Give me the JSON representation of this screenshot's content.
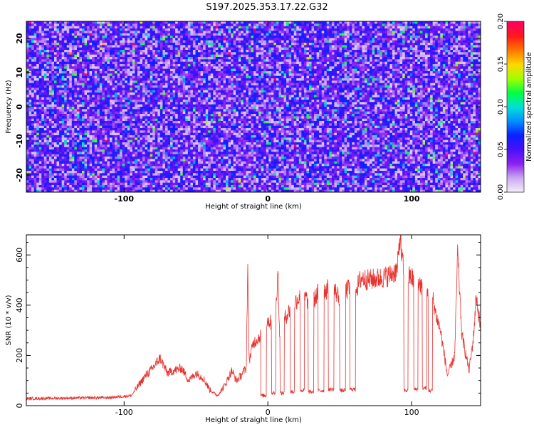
{
  "title": "S197.2025.353.17.22.G32",
  "colors": {
    "snr_line": "#e8322f",
    "background": "#ffffff",
    "axes": "#000000",
    "colormap": [
      "#f4ecfa",
      "#c9a6f0",
      "#8a20f0",
      "#4a10f8",
      "#0a20ff",
      "#0090ff",
      "#00e0d8",
      "#00ff40",
      "#a0ff00",
      "#ffd800",
      "#ff7a00",
      "#ff1a1a",
      "#ff0060"
    ]
  },
  "chart_data": [
    {
      "type": "heatmap",
      "title": "S197.2025.353.17.22.G32",
      "xlabel": "Height of straight line (km)",
      "ylabel": "Frequency (Hz)",
      "xlim": [
        -168,
        148
      ],
      "ylim": [
        -25,
        25
      ],
      "xticks": [
        -100,
        0,
        100
      ],
      "yticks": [
        -20,
        -10,
        0,
        10,
        20
      ],
      "colorbar": {
        "label": "Normalized spectral amplitude",
        "range": [
          0,
          0.2
        ],
        "ticks": [
          "0.00",
          "0.05",
          "0.10",
          "0.15",
          "0.20"
        ]
      },
      "texture": {
        "grid_cols": 180,
        "grid_rows": 72,
        "base_level": 0.035,
        "noise_sigma": 0.03,
        "max_speckle": 0.18
      }
    },
    {
      "type": "line",
      "xlabel": "Height of straight line (km)",
      "ylabel": "SNR (10 * v/v)",
      "xlim": [
        -168,
        148
      ],
      "ylim": [
        0,
        680
      ],
      "xticks": [
        -100,
        0,
        100
      ],
      "yticks": [
        0,
        200,
        400,
        600
      ],
      "series": [
        {
          "name": "SNR",
          "x": [
            -168,
            -140,
            -110,
            -95,
            -90,
            -85,
            -80,
            -75,
            -70,
            -65,
            -60,
            -55,
            -50,
            -45,
            -40,
            -35,
            -30,
            -25,
            -22,
            -20,
            -15,
            -14,
            -13,
            -10,
            -5,
            0,
            5,
            7,
            8,
            10,
            15,
            20,
            25,
            30,
            35,
            40,
            45,
            50,
            55,
            60,
            62,
            65,
            70,
            75,
            80,
            85,
            90,
            92,
            93,
            95,
            100,
            105,
            110,
            115,
            117,
            120,
            125,
            130,
            132,
            135,
            140,
            143,
            145,
            148
          ],
          "values": [
            28,
            30,
            32,
            40,
            80,
            120,
            150,
            190,
            130,
            140,
            150,
            100,
            130,
            110,
            60,
            40,
            80,
            140,
            100,
            110,
            150,
            560,
            180,
            250,
            280,
            340,
            320,
            545,
            300,
            330,
            380,
            420,
            440,
            400,
            450,
            460,
            470,
            430,
            460,
            480,
            470,
            510,
            500,
            505,
            510,
            520,
            540,
            680,
            600,
            520,
            510,
            490,
            450,
            420,
            360,
            300,
            120,
            200,
            610,
            280,
            140,
            270,
            440,
            300
          ],
          "dips": [
            {
              "x": -3,
              "width": 4,
              "level": 40
            },
            {
              "x": 4,
              "width": 3,
              "level": 50
            },
            {
              "x": 10,
              "width": 3,
              "level": 50
            },
            {
              "x": 17,
              "width": 3,
              "level": 55
            },
            {
              "x": 24,
              "width": 3,
              "level": 60
            },
            {
              "x": 30,
              "width": 4,
              "level": 55
            },
            {
              "x": 37,
              "width": 4,
              "level": 60
            },
            {
              "x": 44,
              "width": 4,
              "level": 65
            },
            {
              "x": 52,
              "width": 4,
              "level": 60
            },
            {
              "x": 59,
              "width": 4,
              "level": 65
            },
            {
              "x": 96,
              "width": 3,
              "level": 60
            },
            {
              "x": 103,
              "width": 3,
              "level": 65
            },
            {
              "x": 109,
              "width": 3,
              "level": 70
            },
            {
              "x": 113,
              "width": 3,
              "level": 60
            }
          ],
          "noise_amp": 28
        }
      ]
    }
  ]
}
